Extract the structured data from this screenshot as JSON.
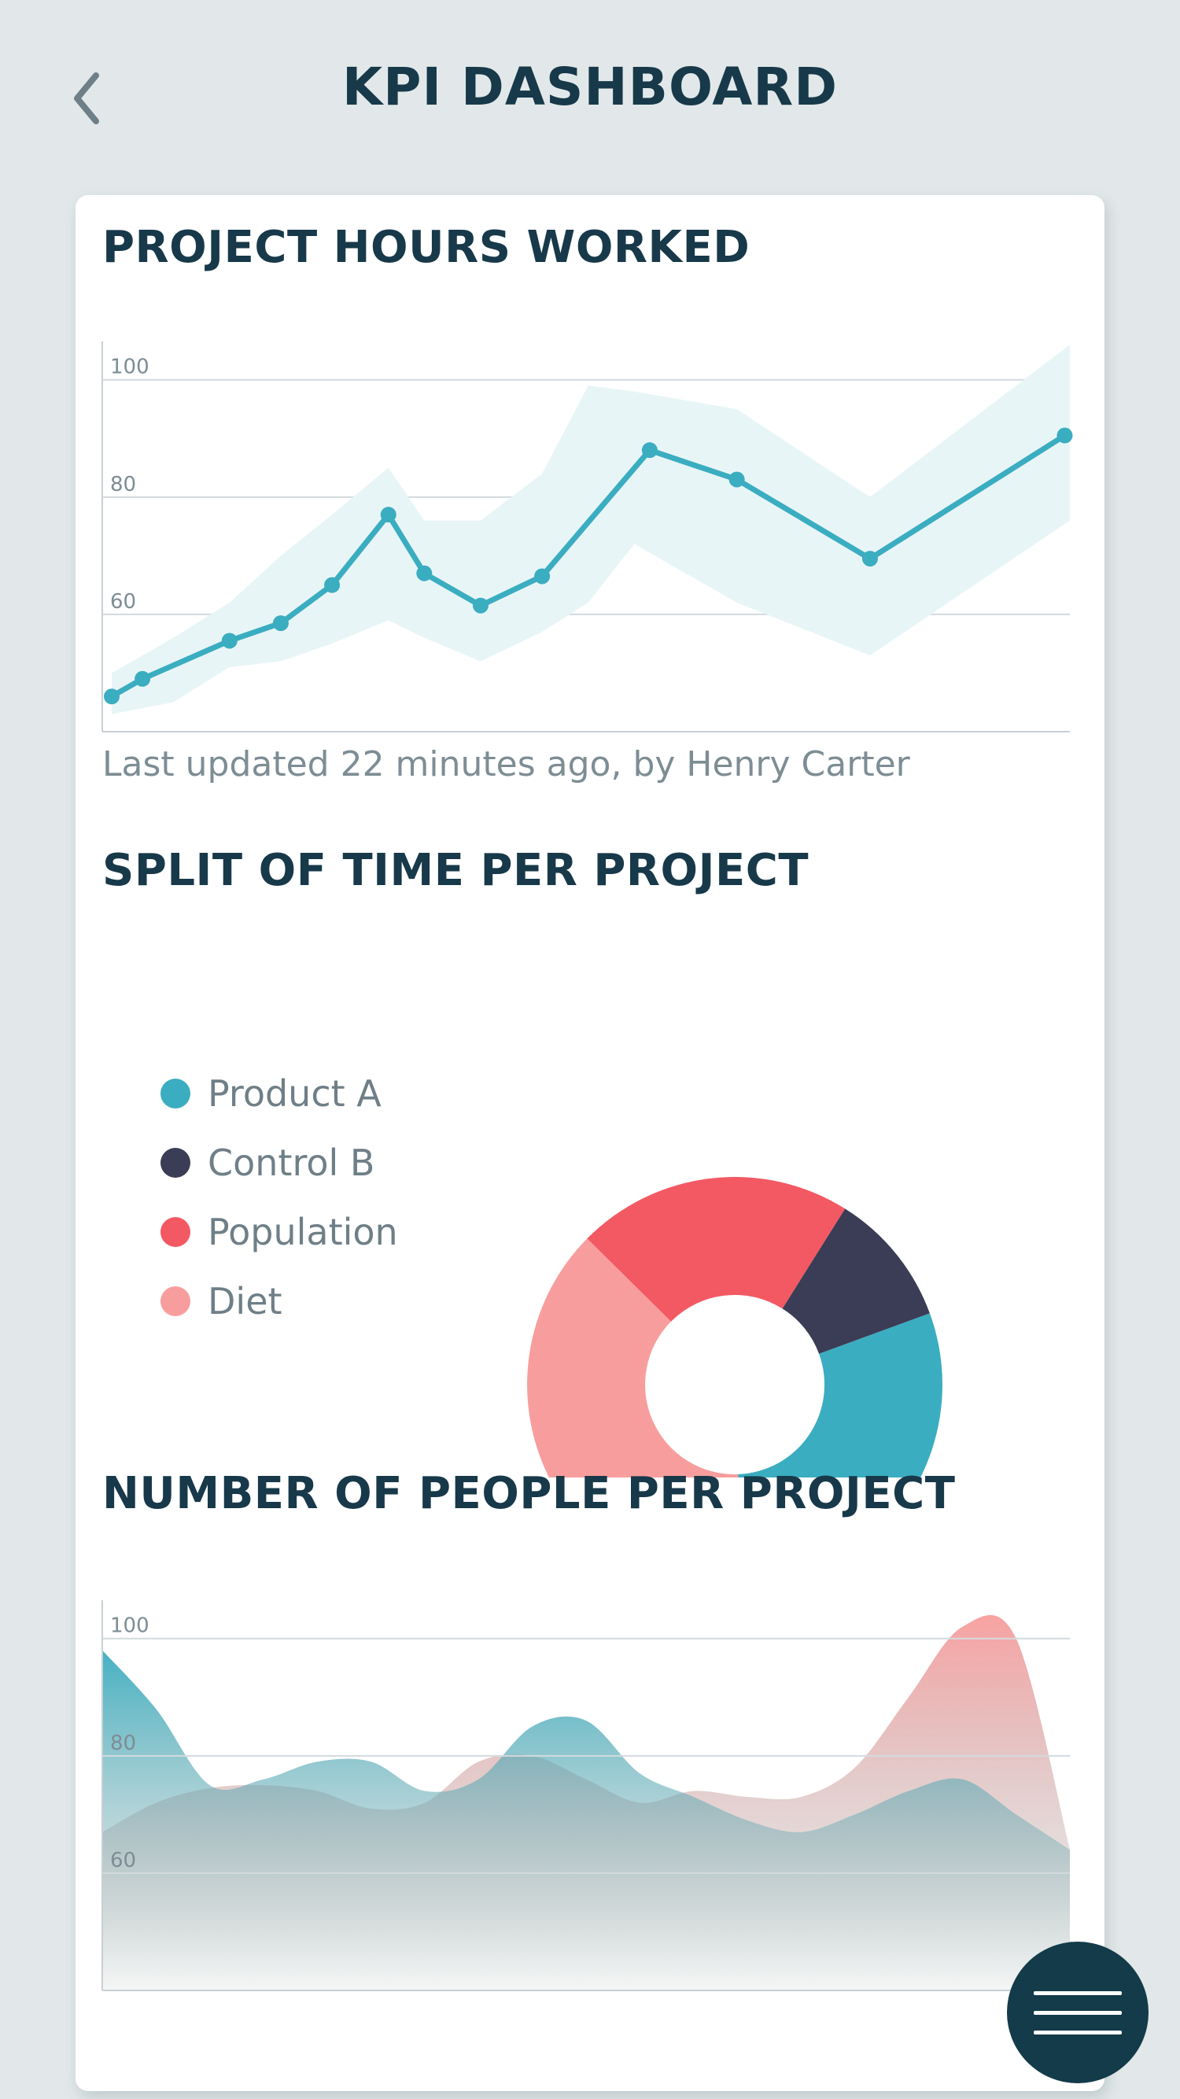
{
  "header": {
    "title": "KPI DASHBOARD",
    "back_icon": "chevron-left-icon"
  },
  "sections": {
    "hours_title": "PROJECT HOURS WORKED",
    "updated_text": "Last updated 22 minutes ago, by Henry Carter",
    "split_title": "SPLIT OF TIME PER PROJECT",
    "people_title": "NUMBER OF PEOPLE PER PROJECT"
  },
  "colors": {
    "accent": "#3badc0",
    "band": "#e8f5f7",
    "product_a": "#3badc0",
    "control_b": "#3b3c55",
    "population": "#f35963",
    "diet": "#f89d9d",
    "fab": "#133b49"
  },
  "legend": [
    {
      "label": "Product A",
      "color": "#3badc0"
    },
    {
      "label": "Control B",
      "color": "#3b3c55"
    },
    {
      "label": "Population",
      "color": "#f35963"
    },
    {
      "label": "Diet",
      "color": "#f89d9d"
    }
  ],
  "fab": {
    "icon": "menu-icon"
  },
  "chart_data": [
    {
      "type": "line",
      "y_ticks": [
        "100",
        "80",
        "60"
      ],
      "ylim": [
        40,
        106
      ],
      "x": [
        0,
        1,
        2,
        3,
        4,
        5,
        6,
        7,
        8,
        9,
        10,
        11,
        12,
        13,
        14
      ],
      "grid": true,
      "series": [
        {
          "values": [
            46,
            49,
            55.5,
            58.5,
            65,
            77,
            67,
            61.5,
            66.5,
            88,
            83,
            69.5,
            90.5
          ],
          "x": [
            0,
            0.6,
            2.3,
            3.3,
            4.3,
            5.4,
            6.1,
            7.2,
            8.4,
            10.5,
            12.2,
            14.8,
            18.6
          ]
        }
      ],
      "band": {
        "x": [
          0,
          1.2,
          2.3,
          3.3,
          4.3,
          5.4,
          6.1,
          7.2,
          8.4,
          9.3,
          10.2,
          12.2,
          14.8,
          18.7
        ],
        "upper": [
          50,
          56,
          62,
          70,
          77,
          85,
          76,
          76,
          84,
          99,
          98,
          95,
          80,
          106
        ],
        "lower": [
          43,
          45,
          51,
          52,
          55,
          59,
          56,
          52,
          57,
          62,
          72,
          62,
          53,
          76
        ]
      }
    },
    {
      "type": "pie",
      "donut": true,
      "slices": [
        {
          "label": "Product A",
          "value": 30,
          "color": "#3badc0"
        },
        {
          "label": "Diet",
          "value": 38,
          "color": "#f89d9d"
        },
        {
          "label": "Population",
          "value": 21.5,
          "color": "#f35963"
        },
        {
          "label": "Control B",
          "value": 10.5,
          "color": "#3b3c55"
        }
      ]
    },
    {
      "type": "area",
      "y_ticks": [
        "100",
        "80",
        "60"
      ],
      "ylim": [
        40,
        106
      ],
      "grid": true,
      "series": [
        {
          "color": "#f89d9d",
          "x": [
            0,
            1,
            2,
            3,
            4,
            5,
            6,
            7,
            8,
            9,
            10,
            11,
            12,
            13,
            14,
            15,
            16,
            17,
            18
          ],
          "values": [
            67,
            72,
            74.5,
            75,
            74,
            71,
            72,
            79,
            80,
            76,
            72,
            74,
            73,
            73,
            78,
            90,
            102,
            100,
            64
          ]
        },
        {
          "color": "#3badc0",
          "x": [
            0,
            1,
            2,
            3,
            4,
            5,
            6,
            7,
            8,
            9,
            10,
            11,
            12,
            13,
            14,
            15,
            16,
            17,
            18
          ],
          "values": [
            98,
            88,
            75,
            76,
            79,
            79,
            74,
            76,
            85,
            86,
            77,
            73,
            69,
            67,
            70,
            74,
            76,
            70,
            64
          ]
        }
      ]
    }
  ]
}
